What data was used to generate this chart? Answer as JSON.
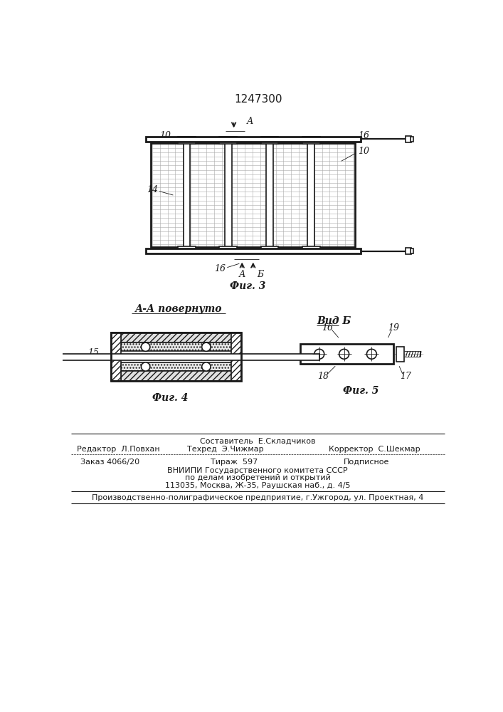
{
  "patent_number": "1247300",
  "fig3_label": "Фиг. 3",
  "fig4_label": "Фиг. 4",
  "fig5_label": "Фиг. 5",
  "section_label_AA": "А-А повернуто",
  "view_label_B": "Вид Б",
  "footer_line1_center": "Составитель  Е.Складчиков",
  "footer_line2_left": "Редактор  Л.Повхан",
  "footer_line2_center": "Техред  Э.Чижмар",
  "footer_line2_right": "Корректор  С.Шекмар",
  "footer_line3_left": "Заказ 4066/20",
  "footer_line3_center": "Тираж  597",
  "footer_line3_right": "Подписное",
  "footer_line4": "ВНИИПИ Государственного комитета СССР",
  "footer_line5": "по делам изобретений и открытий",
  "footer_line6": "113035, Москва, Ж-35, Раушская наб., д. 4/5",
  "footer_line7": "Производственно-полиграфическое предприятие, г.Ужгород, ул. Проектная, 4",
  "lc": "#1a1a1a",
  "lw_main": 1.2,
  "lw_thin": 0.6,
  "lw_thick": 2.0
}
